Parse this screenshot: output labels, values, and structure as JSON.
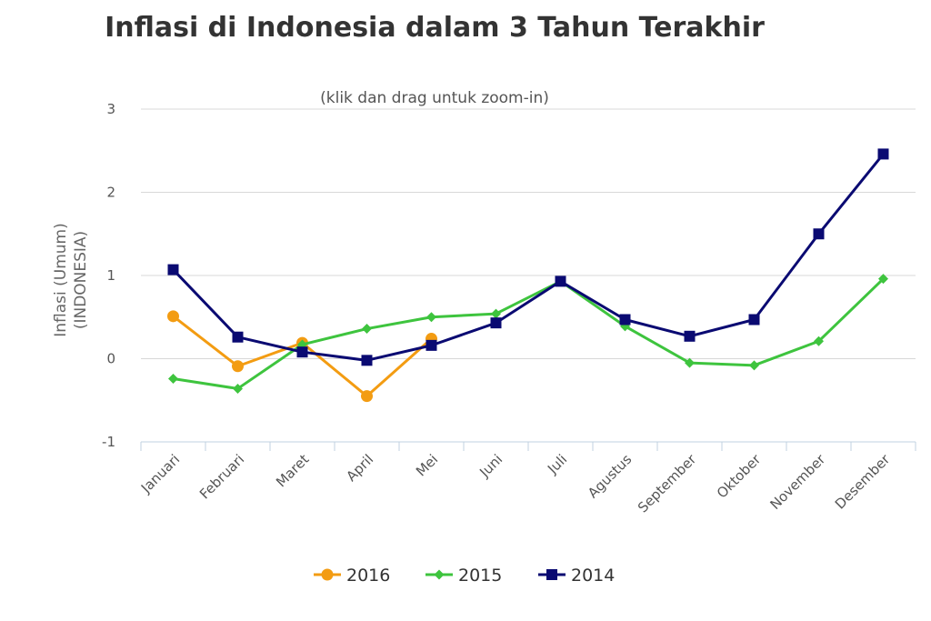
{
  "chart_data": {
    "type": "line",
    "title": "Inflasi di Indonesia dalam 3 Tahun Terakhir",
    "subtitle": "(klik dan drag untuk zoom-in)",
    "ylabel": [
      "Inflasi (Umum)",
      "(INDONESIA)"
    ],
    "xlabel": "",
    "categories": [
      "Januari",
      "Februari",
      "Maret",
      "April",
      "Mei",
      "Juni",
      "Juli",
      "Agustus",
      "September",
      "Oktober",
      "November",
      "Desember"
    ],
    "ylim": [
      -1,
      3
    ],
    "yticks": [
      "-1",
      "0",
      "1",
      "2",
      "3"
    ],
    "grid": true,
    "legend_position": "bottom",
    "series": [
      {
        "name": "2016",
        "color": "#f39c12",
        "marker": "circle",
        "values": [
          0.51,
          -0.09,
          0.19,
          -0.45,
          0.24,
          null,
          null,
          null,
          null,
          null,
          null,
          null
        ]
      },
      {
        "name": "2015",
        "color": "#3ec43e",
        "marker": "diamond",
        "values": [
          -0.24,
          -0.36,
          0.17,
          0.36,
          0.5,
          0.54,
          0.93,
          0.39,
          -0.05,
          -0.08,
          0.21,
          0.96
        ]
      },
      {
        "name": "2014",
        "color": "#0a0a72",
        "marker": "square",
        "values": [
          1.07,
          0.26,
          0.08,
          -0.02,
          0.16,
          0.43,
          0.93,
          0.47,
          0.27,
          0.47,
          1.5,
          2.46
        ]
      }
    ]
  }
}
